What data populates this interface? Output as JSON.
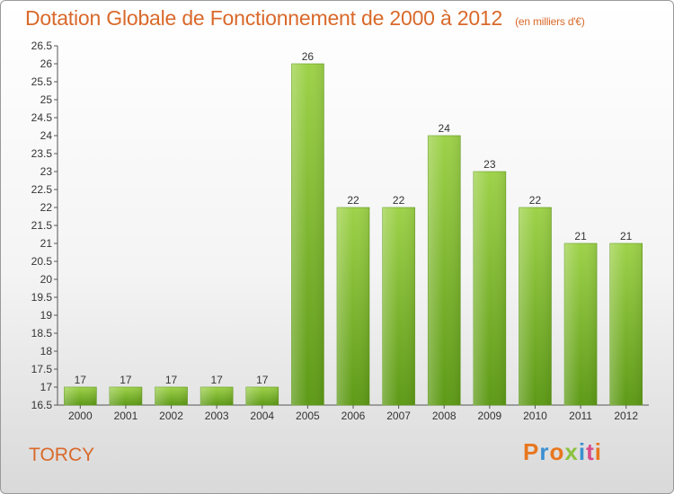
{
  "header": {
    "title": "Dotation Globale de Fonctionnement de 2000 à 2012",
    "subtitle": "(en milliers d'€)"
  },
  "footer": {
    "place": "TORCY",
    "logo": "Proxiti",
    "logo_colors": [
      "#e8761e",
      "#3a8fd0",
      "#e8761e",
      "#8bc23f",
      "#3a8fd0",
      "#d94a8a",
      "#e8761e"
    ]
  },
  "chart_data": {
    "type": "bar",
    "title": "Dotation Globale de Fonctionnement de 2000 à 2012",
    "subtitle": "(en milliers d'€)",
    "xlabel": "",
    "ylabel": "",
    "categories": [
      "2000",
      "2001",
      "2002",
      "2003",
      "2004",
      "2005",
      "2006",
      "2007",
      "2008",
      "2009",
      "2010",
      "2011",
      "2012"
    ],
    "values": [
      17,
      17,
      17,
      17,
      17,
      26,
      22,
      22,
      24,
      23,
      22,
      21,
      21
    ],
    "ylim": [
      16.5,
      26.5
    ],
    "yticks": [
      "16.5",
      "17",
      "17.5",
      "18",
      "18.5",
      "19",
      "19.5",
      "20",
      "20.5",
      "21",
      "21.5",
      "22",
      "22.5",
      "23",
      "23.5",
      "24",
      "24.5",
      "25",
      "25.5",
      "26",
      "26.5"
    ],
    "grid": false,
    "legend": "none",
    "bar_color": "#7cb82f"
  }
}
